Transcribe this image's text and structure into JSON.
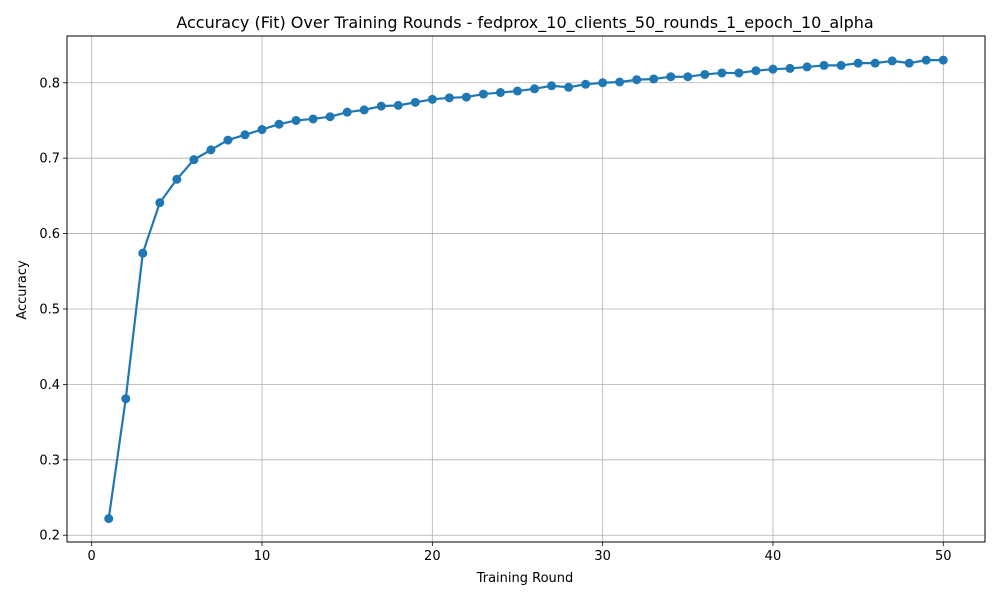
{
  "chart_data": {
    "type": "line",
    "title": "Accuracy (Fit) Over Training Rounds  - fedprox_10_clients_50_rounds_1_epoch_10_alpha",
    "xlabel": "Training Round",
    "ylabel": "Accuracy",
    "xlim": [
      -1.45,
      52.45
    ],
    "ylim": [
      0.191,
      0.862
    ],
    "xticks": [
      0,
      10,
      20,
      30,
      40,
      50
    ],
    "yticks": [
      0.2,
      0.3,
      0.4,
      0.5,
      0.6,
      0.7,
      0.8
    ],
    "xtick_labels": [
      "0",
      "10",
      "20",
      "30",
      "40",
      "50"
    ],
    "ytick_labels": [
      "0.2",
      "0.3",
      "0.4",
      "0.5",
      "0.6",
      "0.7",
      "0.8"
    ],
    "grid": true,
    "line_color": "#1f77b4",
    "x": [
      1,
      2,
      3,
      4,
      5,
      6,
      7,
      8,
      9,
      10,
      11,
      12,
      13,
      14,
      15,
      16,
      17,
      18,
      19,
      20,
      21,
      22,
      23,
      24,
      25,
      26,
      27,
      28,
      29,
      30,
      31,
      32,
      33,
      34,
      35,
      36,
      37,
      38,
      39,
      40,
      41,
      42,
      43,
      44,
      45,
      46,
      47,
      48,
      49,
      50
    ],
    "series": [
      {
        "values": [
          0.222,
          0.381,
          0.574,
          0.641,
          0.672,
          0.698,
          0.711,
          0.724,
          0.731,
          0.738,
          0.745,
          0.75,
          0.752,
          0.755,
          0.761,
          0.764,
          0.769,
          0.77,
          0.774,
          0.778,
          0.78,
          0.781,
          0.785,
          0.787,
          0.789,
          0.792,
          0.796,
          0.794,
          0.798,
          0.8,
          0.801,
          0.804,
          0.805,
          0.808,
          0.808,
          0.811,
          0.813,
          0.813,
          0.816,
          0.818,
          0.819,
          0.821,
          0.823,
          0.823,
          0.826,
          0.826,
          0.829,
          0.826,
          0.83,
          0.83
        ]
      }
    ]
  }
}
